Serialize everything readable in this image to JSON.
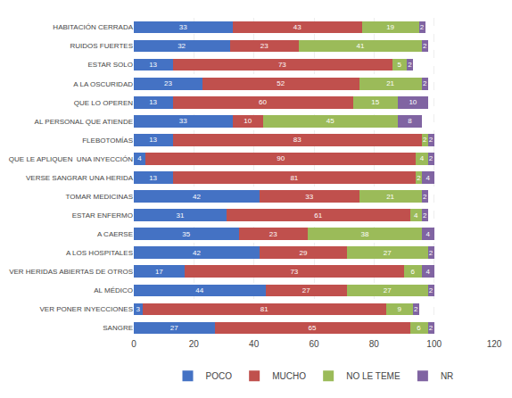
{
  "chart_data": {
    "type": "bar",
    "orientation": "horizontal",
    "stacked": true,
    "data_labels": true,
    "grid": true,
    "legend": "bottom",
    "categories": [
      "HABITACIÓN CERRADA",
      "RUIDOS FUERTES",
      "ESTAR SOLO",
      "A LA OSCURIDAD",
      "QUE LO OPEREN",
      "AL PERSONAL QUE ATIENDE",
      "FLEBOTOMÍAS",
      "QUE LE APLIQUEN  UNA INYECCIÓN",
      "VERSE SANGRAR UNA HERIDA",
      "TOMAR MEDICINAS",
      "ESTAR ENFERMO",
      "A CAERSE",
      "A LOS HOSPITALES",
      "VER HERIDAS ABIERTAS DE OTROS",
      "AL MÉDICO",
      "VER PONER INYECCIONES",
      "SANGRE"
    ],
    "series": [
      {
        "name": "POCO",
        "color": "#4472C4",
        "values": [
          33,
          32,
          13,
          23,
          13,
          33,
          13,
          4,
          13,
          42,
          31,
          35,
          42,
          17,
          44,
          3,
          27
        ]
      },
      {
        "name": "MUCHO",
        "color": "#C0504D",
        "values": [
          43,
          23,
          73,
          52,
          60,
          10,
          83,
          90,
          81,
          33,
          61,
          23,
          29,
          73,
          27,
          81,
          65
        ]
      },
      {
        "name": "NO LE TEME",
        "color": "#9BBB59",
        "values": [
          19,
          41,
          5,
          21,
          15,
          45,
          2,
          4,
          2,
          21,
          4,
          38,
          27,
          6,
          27,
          9,
          6
        ]
      },
      {
        "name": "NR",
        "color": "#8064A2",
        "values": [
          2,
          2,
          2,
          2,
          10,
          8,
          2,
          2,
          4,
          2,
          2,
          4,
          2,
          4,
          2,
          2,
          2
        ]
      }
    ],
    "xlim": [
      0,
      120
    ],
    "xticks": [
      0,
      20,
      40,
      60,
      80,
      100,
      120
    ]
  }
}
